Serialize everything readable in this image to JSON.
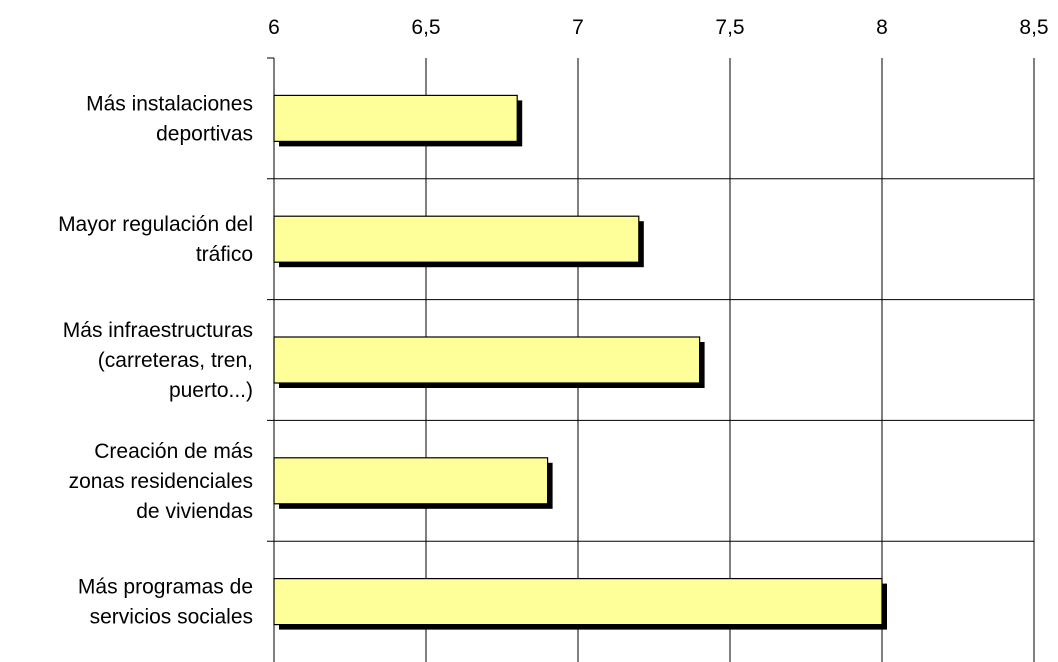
{
  "chart_data": {
    "type": "bar",
    "orientation": "horizontal",
    "title": "",
    "xlabel": "",
    "ylabel": "",
    "categories": [
      [
        "Más instalaciones",
        "deportivas"
      ],
      [
        "Mayor regulación del",
        "tráfico"
      ],
      [
        "Más infraestructuras",
        "(carreteras, tren,",
        "puerto...)"
      ],
      [
        "Creación de más",
        "zonas residenciales",
        "de viviendas"
      ],
      [
        "Más programas de",
        "servicios sociales"
      ]
    ],
    "values": [
      6.8,
      7.2,
      7.4,
      6.9,
      8.0
    ],
    "xlim": [
      6,
      8.5
    ],
    "ticks": [
      6,
      6.5,
      7,
      7.5,
      8,
      8.5
    ],
    "tick_labels": [
      "6",
      "6,5",
      "7",
      "7,5",
      "8",
      "8,5"
    ],
    "axis_position": "top",
    "grid": true,
    "legend": "none",
    "colors": {
      "bar_fill": "#FFFF99",
      "bar_shadow": "#000000",
      "grid": "#000000",
      "text": "#000000"
    }
  }
}
